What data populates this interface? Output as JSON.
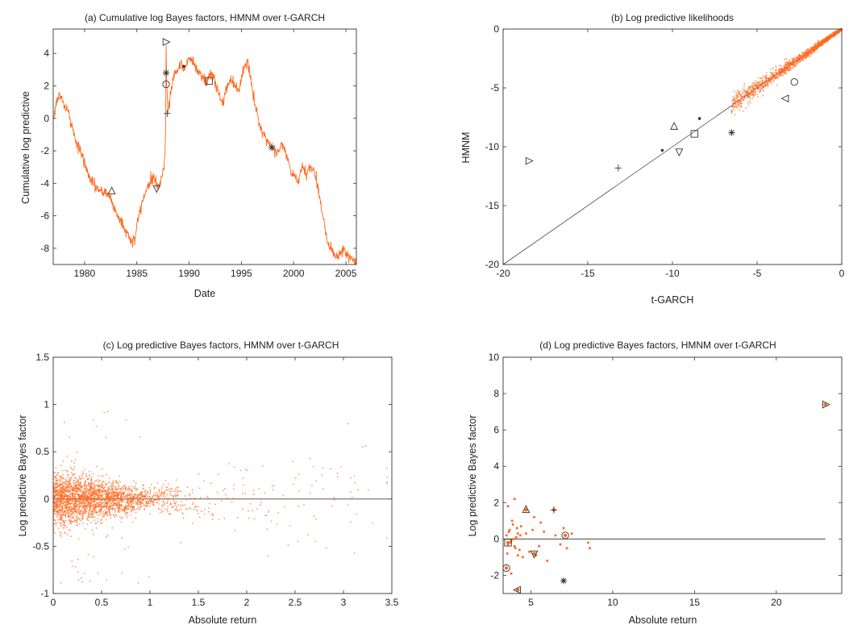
{
  "colors": {
    "series": "#ff6a1f",
    "marker": "#333333",
    "ref_line": "#444444",
    "frame": "#333333"
  },
  "chart_data": [
    {
      "id": "a",
      "type": "line",
      "title": "(a) Cumulative log Bayes factors, HMNM over t-GARCH",
      "xlabel": "Date",
      "ylabel": "Cumulative log predictive",
      "xlim": [
        1977.0,
        2006.0
      ],
      "ylim": [
        -9,
        5.5
      ],
      "xticks": [
        1980,
        1985,
        1990,
        1995,
        2000,
        2005
      ],
      "yticks": [
        -8,
        -6,
        -4,
        -2,
        0,
        2,
        4
      ],
      "grid": false,
      "x": [
        1977.0,
        1977.3,
        1977.7,
        1978.0,
        1978.4,
        1978.8,
        1979.2,
        1979.6,
        1980.0,
        1980.4,
        1980.8,
        1981.2,
        1981.6,
        1982.0,
        1982.4,
        1982.8,
        1983.2,
        1983.6,
        1984.0,
        1984.4,
        1984.8,
        1985.0,
        1985.4,
        1985.8,
        1986.2,
        1986.6,
        1987.0,
        1987.3,
        1987.6,
        1987.75,
        1987.8,
        1987.85,
        1988.0,
        1988.2,
        1988.5,
        1988.8,
        1989.2,
        1989.6,
        1990.0,
        1990.4,
        1990.8,
        1991.2,
        1991.6,
        1992.0,
        1992.4,
        1992.8,
        1993.2,
        1993.6,
        1994.0,
        1994.4,
        1994.8,
        1995.2,
        1995.6,
        1996.0,
        1996.4,
        1996.8,
        1997.2,
        1997.6,
        1998.0,
        1998.4,
        1998.8,
        1999.2,
        1999.6,
        2000.0,
        2000.4,
        2000.8,
        2001.2,
        2001.6,
        2002.0,
        2002.4,
        2002.8,
        2003.2,
        2003.6,
        2004.0,
        2004.4,
        2004.8,
        2005.2,
        2005.6,
        2006.0
      ],
      "values": [
        0.0,
        1.0,
        1.5,
        0.8,
        0.5,
        -0.5,
        -1.5,
        -2.0,
        -2.8,
        -3.5,
        -4.0,
        -4.3,
        -4.6,
        -4.5,
        -4.8,
        -5.5,
        -6.0,
        -6.5,
        -7.0,
        -7.5,
        -7.6,
        -6.5,
        -5.5,
        -4.5,
        -4.0,
        -3.5,
        -4.3,
        -3.8,
        -3.0,
        -1.0,
        4.7,
        2.0,
        0.3,
        1.5,
        2.5,
        3.0,
        3.3,
        3.0,
        3.8,
        3.5,
        3.0,
        2.5,
        2.2,
        2.8,
        2.5,
        1.5,
        1.0,
        1.8,
        2.5,
        2.0,
        1.8,
        3.0,
        3.5,
        2.0,
        0.5,
        -0.5,
        -1.0,
        -1.5,
        -1.8,
        -2.2,
        -1.5,
        -2.0,
        -3.0,
        -3.5,
        -4.0,
        -3.0,
        -3.5,
        -3.0,
        -3.2,
        -4.5,
        -6.0,
        -7.5,
        -8.0,
        -8.5,
        -8.3,
        -8.0,
        -8.6,
        -8.7,
        -9.0
      ],
      "markers": [
        {
          "shape": "triangle-up",
          "x": 1982.6,
          "y": -4.5
        },
        {
          "shape": "triangle-down",
          "x": 1986.9,
          "y": -4.3
        },
        {
          "shape": "triangle-right",
          "x": 1987.75,
          "y": 4.7
        },
        {
          "shape": "circle",
          "x": 1987.8,
          "y": 2.1
        },
        {
          "shape": "star",
          "x": 1987.8,
          "y": 2.8
        },
        {
          "shape": "plus",
          "x": 1987.9,
          "y": 0.3
        },
        {
          "shape": "dot",
          "x": 1989.5,
          "y": 3.2
        },
        {
          "shape": "square",
          "x": 1991.9,
          "y": 2.3
        },
        {
          "shape": "star",
          "x": 1997.9,
          "y": -1.8
        }
      ]
    },
    {
      "id": "b",
      "type": "scatter",
      "title": "(b) Log predictive likelihoods",
      "xlabel": "t-GARCH",
      "ylabel": "HMNM",
      "xlim": [
        -20,
        0
      ],
      "ylim": [
        -20,
        0
      ],
      "xticks": [
        -20,
        -15,
        -10,
        -5,
        0
      ],
      "yticks": [
        -20,
        -15,
        -10,
        -5,
        0
      ],
      "grid": false,
      "reference_line": "y = x",
      "markers": [
        {
          "shape": "triangle-right",
          "x": -18.5,
          "y": -11.2
        },
        {
          "shape": "plus",
          "x": -13.2,
          "y": -11.8
        },
        {
          "shape": "dot",
          "x": -10.6,
          "y": -10.3
        },
        {
          "shape": "triangle-up",
          "x": -9.9,
          "y": -8.3
        },
        {
          "shape": "triangle-down",
          "x": -9.6,
          "y": -10.4
        },
        {
          "shape": "square",
          "x": -8.7,
          "y": -8.9
        },
        {
          "shape": "dot",
          "x": -8.4,
          "y": -7.6
        },
        {
          "shape": "star",
          "x": -6.5,
          "y": -8.8
        },
        {
          "shape": "triangle-left",
          "x": -3.3,
          "y": -5.9
        },
        {
          "shape": "circle",
          "x": -2.8,
          "y": -4.5
        }
      ]
    },
    {
      "id": "c",
      "type": "scatter",
      "title": "(c) Log predictive Bayes factors, HMNM over t-GARCH",
      "xlabel": "Absolute return",
      "ylabel": "Log predictive Bayes factor",
      "xlim": [
        0,
        3.5
      ],
      "ylim": [
        -1,
        1.5
      ],
      "xticks": [
        0,
        0.5,
        1,
        1.5,
        2,
        2.5,
        3,
        3.5
      ],
      "yticks": [
        -1,
        -0.5,
        0,
        0.5,
        1,
        1.5
      ],
      "grid": false,
      "reference_line": "y = 0"
    },
    {
      "id": "d",
      "type": "scatter",
      "title": "(d) Log predictive Bayes factors, HMNM over t-GARCH",
      "xlabel": "Absolute return",
      "ylabel": "Log predictive Bayes factor",
      "xlim": [
        3.3,
        24
      ],
      "ylim": [
        -3,
        10
      ],
      "xticks": [
        5,
        10,
        15,
        20
      ],
      "yticks": [
        -2,
        0,
        2,
        4,
        6,
        8,
        10
      ],
      "grid": false,
      "reference_line": "y = 0",
      "x": [
        3.5,
        3.6,
        3.7,
        3.8,
        3.9,
        4.0,
        4.1,
        4.2,
        4.3,
        3.55,
        3.65,
        3.75,
        3.85,
        3.95,
        4.05,
        4.15,
        4.35,
        4.5,
        4.7,
        4.9,
        5.1,
        5.3,
        5.5,
        5.8,
        6.0,
        6.5,
        6.8,
        7.0,
        7.2,
        7.5,
        8.5,
        8.6,
        3.6,
        3.8,
        4.0,
        4.2,
        4.4,
        5.2,
        5.6
      ],
      "values": [
        0.2,
        -0.3,
        0.5,
        -0.1,
        0.8,
        -0.4,
        0.1,
        0.3,
        -0.6,
        -0.8,
        0.4,
        -0.2,
        1.0,
        0.0,
        -0.5,
        0.6,
        0.2,
        -1.0,
        0.3,
        -0.7,
        0.5,
        -0.9,
        -0.4,
        0.4,
        -1.2,
        0.2,
        -0.3,
        0.6,
        -0.5,
        0.3,
        -0.2,
        -0.5,
        1.8,
        -1.9,
        2.2,
        -0.9,
        0.7,
        1.2,
        0.9
      ],
      "markers": [
        {
          "shape": "triangle-right",
          "x": 23.0,
          "y": 7.4
        },
        {
          "shape": "triangle-up",
          "x": 4.7,
          "y": 1.6
        },
        {
          "shape": "plus",
          "x": 6.4,
          "y": 1.6
        },
        {
          "shape": "circle",
          "x": 7.1,
          "y": 0.2
        },
        {
          "shape": "square",
          "x": 3.6,
          "y": -0.2
        },
        {
          "shape": "triangle-down",
          "x": 5.2,
          "y": -0.8
        },
        {
          "shape": "circle",
          "x": 3.5,
          "y": -1.6
        },
        {
          "shape": "star",
          "x": 7.0,
          "y": -2.3
        },
        {
          "shape": "triangle-left",
          "x": 4.2,
          "y": -2.8
        }
      ]
    }
  ]
}
